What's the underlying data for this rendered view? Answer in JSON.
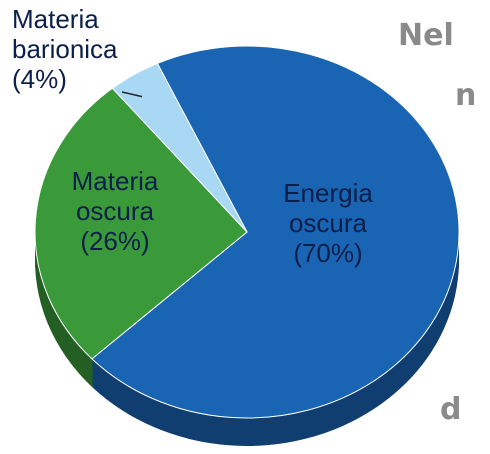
{
  "chart_data": {
    "type": "pie",
    "categories": [
      "Energia oscura",
      "Materia oscura",
      "Materia barionica"
    ],
    "values": [
      70,
      26,
      4
    ],
    "value_labels": [
      "(70%)",
      "(26%)",
      "(4%)"
    ],
    "colors": [
      "#1a64b4",
      "#3a9a3a",
      "#a8d8f4"
    ],
    "annotations": [
      "Nel",
      "n",
      "d"
    ]
  }
}
